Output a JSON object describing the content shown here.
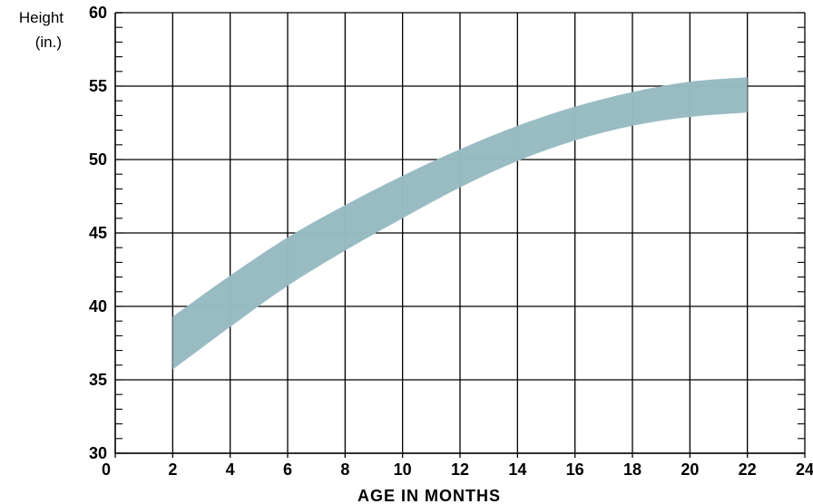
{
  "chart_data": {
    "type": "area",
    "ylabel_lines": [
      "Height",
      "(in.)"
    ],
    "xlabel": "AGE IN MONTHS",
    "xlim": [
      0,
      24
    ],
    "ylim": [
      30,
      60
    ],
    "x_ticks": [
      0,
      2,
      4,
      6,
      8,
      10,
      12,
      14,
      16,
      18,
      20,
      22,
      24
    ],
    "y_ticks": [
      30,
      35,
      40,
      45,
      50,
      55,
      60
    ],
    "x_tick_labels": [
      "0",
      "2",
      "4",
      "6",
      "8",
      "10",
      "12",
      "14",
      "16",
      "18",
      "20",
      "22",
      "24"
    ],
    "y_tick_labels": [
      "30",
      "35",
      "40",
      "45",
      "50",
      "55",
      "60"
    ],
    "y_minor_step": 1,
    "grid": true,
    "band_color": "#97bbc2",
    "series": [
      {
        "x": [
          2,
          4,
          6,
          8,
          10,
          12,
          14,
          16,
          18,
          20,
          22
        ],
        "upper": [
          39.3,
          42.1,
          44.7,
          46.9,
          48.9,
          50.7,
          52.3,
          53.6,
          54.6,
          55.3,
          55.6
        ],
        "lower": [
          35.7,
          38.6,
          41.4,
          43.8,
          46.0,
          48.1,
          49.9,
          51.3,
          52.3,
          52.9,
          53.2
        ]
      }
    ]
  }
}
